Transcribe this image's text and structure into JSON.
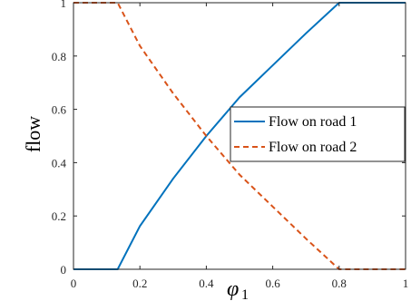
{
  "chart_data": {
    "type": "line",
    "xlabel": "φ1",
    "ylabel": "flow",
    "xlim": [
      0,
      1
    ],
    "ylim": [
      0,
      1
    ],
    "x_ticks": [
      "0",
      "0.2",
      "0.4",
      "0.6",
      "0.8",
      "1"
    ],
    "y_ticks": [
      "0",
      "0.2",
      "0.4",
      "0.6",
      "0.8",
      "1"
    ],
    "grid": false,
    "legend_position": "center-right",
    "series": [
      {
        "name": "Flow on road 1",
        "color": "#0072BD",
        "style": "solid",
        "x": [
          0,
          0.133,
          0.2,
          0.3,
          0.4,
          0.5,
          0.6,
          0.7,
          0.8,
          1
        ],
        "y": [
          0,
          0,
          0.162,
          0.34,
          0.5,
          0.645,
          0.765,
          0.885,
          1,
          1
        ]
      },
      {
        "name": "Flow on road 2",
        "color": "#D95319",
        "style": "dashed",
        "x": [
          0,
          0.133,
          0.2,
          0.3,
          0.4,
          0.5,
          0.6,
          0.7,
          0.8,
          1
        ],
        "y": [
          1,
          1,
          0.838,
          0.66,
          0.5,
          0.355,
          0.235,
          0.115,
          0,
          0
        ]
      }
    ]
  }
}
